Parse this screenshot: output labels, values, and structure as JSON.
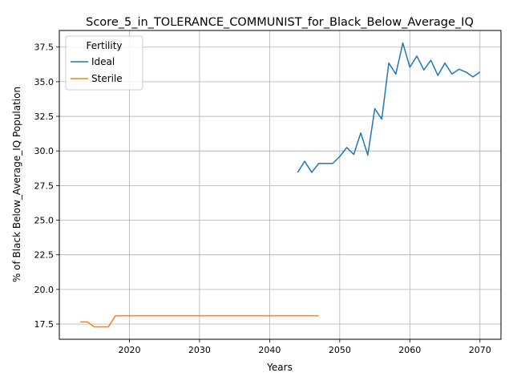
{
  "chart_data": {
    "type": "line",
    "title": "Score_5_in_TOLERANCE_COMMUNIST_for_Black_Below_Average_IQ",
    "xlabel": "Years",
    "ylabel": "% of Black Below_Average_IQ Population",
    "xlim": [
      2010,
      2073
    ],
    "ylim": [
      16.4,
      38.7
    ],
    "xticks": [
      2020,
      2030,
      2040,
      2050,
      2060,
      2070
    ],
    "yticks": [
      17.5,
      20.0,
      22.5,
      25.0,
      27.5,
      30.0,
      32.5,
      35.0,
      37.5
    ],
    "grid": true,
    "legend": {
      "title": "Fertility",
      "placement": "top-left"
    },
    "series": [
      {
        "name": "Ideal",
        "color": "#1f77b4",
        "x": [
          2044,
          2045,
          2046,
          2047,
          2048,
          2049,
          2050,
          2051,
          2052,
          2053,
          2054,
          2055,
          2056,
          2057,
          2058,
          2059,
          2060,
          2061,
          2062,
          2063,
          2064,
          2065,
          2066,
          2067,
          2068,
          2069,
          2070
        ],
        "y": [
          28.45,
          29.25,
          28.45,
          29.1,
          29.1,
          29.1,
          29.6,
          30.25,
          29.75,
          31.3,
          29.7,
          33.05,
          32.3,
          36.35,
          35.55,
          37.8,
          36.05,
          36.85,
          35.85,
          36.55,
          35.45,
          36.35,
          35.55,
          35.9,
          35.7,
          35.35,
          35.7
        ]
      },
      {
        "name": "Sterile",
        "color": "#ff7f0e",
        "x": [
          2013,
          2014,
          2015,
          2016,
          2017,
          2018,
          2019,
          2020,
          2021,
          2022,
          2023,
          2024,
          2025,
          2026,
          2027,
          2028,
          2029,
          2030,
          2031,
          2032,
          2033,
          2034,
          2035,
          2036,
          2037,
          2038,
          2039,
          2040,
          2041,
          2042,
          2043,
          2044,
          2045,
          2046,
          2047
        ],
        "y": [
          17.65,
          17.65,
          17.3,
          17.3,
          17.3,
          18.1,
          18.1,
          18.1,
          18.1,
          18.1,
          18.1,
          18.1,
          18.1,
          18.1,
          18.1,
          18.1,
          18.1,
          18.1,
          18.1,
          18.1,
          18.1,
          18.1,
          18.1,
          18.1,
          18.1,
          18.1,
          18.1,
          18.1,
          18.1,
          18.1,
          18.1,
          18.1,
          18.1,
          18.1,
          18.1
        ]
      }
    ]
  }
}
